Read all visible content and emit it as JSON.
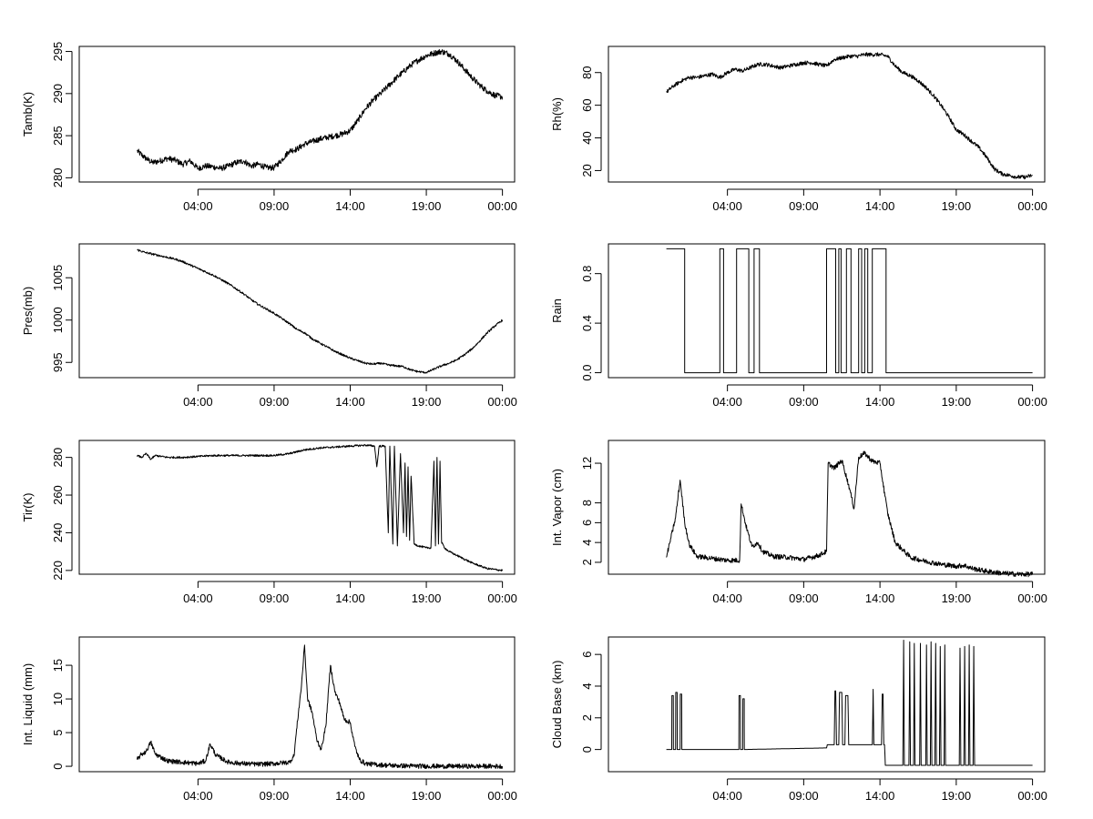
{
  "chart_data": [
    {
      "type": "line",
      "panel": "top-left",
      "ylabel": "Tamb(K)",
      "ylim": [
        279.5,
        295.6
      ],
      "yticks": [
        280,
        285,
        290,
        295
      ],
      "xlim": [
        -3.8,
        24.8
      ],
      "xticks": [
        4,
        9,
        14,
        19,
        24
      ],
      "xtick_labels": [
        "04:00",
        "09:00",
        "14:00",
        "19:00",
        "00:00"
      ],
      "x": [
        0,
        0.5,
        1,
        1.5,
        2,
        2.5,
        3,
        3.5,
        4,
        4.5,
        5,
        5.5,
        6,
        6.5,
        7,
        7.5,
        8,
        8.5,
        9,
        9.5,
        10,
        10.5,
        11,
        11.5,
        12,
        12.5,
        13,
        13.5,
        14,
        14.5,
        15,
        15.5,
        16,
        16.5,
        17,
        17.5,
        18,
        18.5,
        19,
        19.5,
        20,
        20.5,
        21,
        21.5,
        22,
        22.5,
        23,
        23.5,
        24
      ],
      "y": [
        283.2,
        282.4,
        281.8,
        282.0,
        282.3,
        282.1,
        281.6,
        282.0,
        281.1,
        281.4,
        281.3,
        281.1,
        281.4,
        281.8,
        282.0,
        281.4,
        281.6,
        281.2,
        281.2,
        282.1,
        283.2,
        283.4,
        284.0,
        284.3,
        284.6,
        284.8,
        285.0,
        285.2,
        285.6,
        286.8,
        288.2,
        289.2,
        290.0,
        290.9,
        291.8,
        292.6,
        293.4,
        294.0,
        294.5,
        294.8,
        295.0,
        294.7,
        293.9,
        292.9,
        291.9,
        291.0,
        290.3,
        289.8,
        289.6
      ],
      "noise": 0.35
    },
    {
      "type": "line",
      "panel": "top-right",
      "ylabel": "Rh(%)",
      "ylim": [
        13,
        96
      ],
      "yticks": [
        20,
        40,
        60,
        80
      ],
      "xlim": [
        -3.8,
        24.8
      ],
      "xticks": [
        4,
        9,
        14,
        19,
        24
      ],
      "xtick_labels": [
        "04:00",
        "09:00",
        "14:00",
        "19:00",
        "00:00"
      ],
      "x": [
        0,
        0.5,
        1,
        1.5,
        2,
        2.5,
        3,
        3.5,
        4,
        4.5,
        5,
        5.5,
        6,
        6.5,
        7,
        7.5,
        8,
        8.5,
        9,
        9.5,
        10,
        10.5,
        11,
        11.5,
        12,
        12.5,
        13,
        13.5,
        14,
        14.5,
        15,
        15.5,
        16,
        16.5,
        17,
        17.5,
        18,
        18.5,
        19,
        19.5,
        20,
        20.5,
        21,
        21.5,
        22,
        22.5,
        23,
        23.5,
        24
      ],
      "y": [
        68,
        72,
        75,
        77,
        77,
        78,
        79,
        77,
        80,
        82,
        81,
        83,
        85,
        85,
        84,
        83,
        84,
        85,
        86,
        86,
        85,
        84,
        88,
        89,
        90,
        90,
        91,
        91,
        91,
        90,
        84,
        80,
        78,
        75,
        71,
        66,
        60,
        53,
        45,
        42,
        38,
        34,
        28,
        21,
        18,
        17,
        16,
        16,
        17
      ],
      "noise": 1.2
    },
    {
      "type": "line",
      "panel": "row2-left",
      "ylabel": "Pres(mb)",
      "ylim": [
        993.2,
        1009.0
      ],
      "yticks": [
        995,
        1000,
        1005
      ],
      "xlim": [
        -3.8,
        24.8
      ],
      "xticks": [
        4,
        9,
        14,
        19,
        24
      ],
      "xtick_labels": [
        "04:00",
        "09:00",
        "14:00",
        "19:00",
        "00:00"
      ],
      "x": [
        0,
        0.5,
        1,
        1.5,
        2,
        2.5,
        3,
        3.5,
        4,
        4.5,
        5,
        5.5,
        6,
        6.5,
        7,
        7.5,
        8,
        8.5,
        9,
        9.5,
        10,
        10.5,
        11,
        11.5,
        12,
        12.5,
        13,
        13.5,
        14,
        14.5,
        15,
        15.5,
        16,
        16.5,
        17,
        17.5,
        18,
        18.5,
        19,
        19.5,
        20,
        20.5,
        21,
        21.5,
        22,
        22.5,
        23,
        23.5,
        24
      ],
      "y": [
        1008.3,
        1008.0,
        1007.8,
        1007.6,
        1007.4,
        1007.2,
        1006.9,
        1006.5,
        1006.1,
        1005.7,
        1005.3,
        1004.8,
        1004.3,
        1003.7,
        1003.1,
        1002.4,
        1001.8,
        1001.3,
        1000.8,
        1000.2,
        999.6,
        998.9,
        998.5,
        997.8,
        997.3,
        996.8,
        996.3,
        995.9,
        995.5,
        995.2,
        994.9,
        994.8,
        994.9,
        994.7,
        994.6,
        994.5,
        994.1,
        993.9,
        993.8,
        994.2,
        994.6,
        994.9,
        995.3,
        995.9,
        996.6,
        997.5,
        998.5,
        999.3,
        1000.0
      ],
      "noise": 0.12
    },
    {
      "type": "line",
      "panel": "row2-right",
      "ylabel": "Rain",
      "ylim": [
        -0.04,
        1.04
      ],
      "yticks": [
        0.0,
        0.4,
        0.8
      ],
      "ytick_labels": [
        "0.0",
        "0.4",
        "0.8"
      ],
      "xlim": [
        -3.8,
        24.8
      ],
      "xticks": [
        4,
        9,
        14,
        19,
        24
      ],
      "xtick_labels": [
        "04:00",
        "09:00",
        "14:00",
        "19:00",
        "00:00"
      ],
      "step": true,
      "x": [
        0,
        1.2,
        1.2,
        3.5,
        3.5,
        3.75,
        3.75,
        4.6,
        4.6,
        5.4,
        5.4,
        5.75,
        5.75,
        6.1,
        6.1,
        10.5,
        10.5,
        11.1,
        11.1,
        11.3,
        11.3,
        11.45,
        11.45,
        11.8,
        11.8,
        12.1,
        12.1,
        12.6,
        12.6,
        12.8,
        12.8,
        13.0,
        13.0,
        13.2,
        13.2,
        13.5,
        13.5,
        14.4,
        14.4,
        24
      ],
      "y": [
        1,
        1,
        0,
        0,
        1,
        1,
        0,
        0,
        1,
        1,
        0,
        0,
        1,
        1,
        0,
        0,
        1,
        1,
        0,
        0,
        1,
        1,
        0,
        0,
        1,
        1,
        0,
        0,
        1,
        1,
        0,
        0,
        1,
        1,
        0,
        0,
        1,
        1,
        0,
        0
      ]
    },
    {
      "type": "line",
      "panel": "row3-left",
      "ylabel": "Tir(K)",
      "ylim": [
        218,
        289
      ],
      "yticks": [
        220,
        240,
        260,
        280
      ],
      "xlim": [
        -3.8,
        24.8
      ],
      "xticks": [
        4,
        9,
        14,
        19,
        24
      ],
      "xtick_labels": [
        "04:00",
        "09:00",
        "14:00",
        "19:00",
        "00:00"
      ],
      "x": [
        0,
        0.3,
        0.6,
        0.9,
        1.2,
        2,
        3,
        4,
        5,
        6,
        7,
        8,
        9,
        10,
        11,
        12,
        13,
        14,
        15,
        15.6,
        15.75,
        15.9,
        16.3,
        16.5,
        16.6,
        16.8,
        16.9,
        17.1,
        17.3,
        17.5,
        17.6,
        17.7,
        17.8,
        17.9,
        18.0,
        18.2,
        18.5,
        19.0,
        19.3,
        19.5,
        19.6,
        19.7,
        19.8,
        19.9,
        20.0,
        20.2,
        20.5,
        21,
        22,
        23,
        24
      ],
      "y": [
        281,
        280,
        282,
        279,
        281,
        280,
        280,
        280.5,
        281,
        281,
        281,
        281,
        281,
        282,
        284,
        285,
        285.5,
        286,
        286.5,
        286,
        275,
        286,
        286,
        240,
        286,
        234,
        286,
        233,
        282,
        240,
        277,
        238,
        275,
        236,
        270,
        234,
        233,
        232,
        232,
        278,
        233,
        280,
        234,
        278,
        235,
        232,
        230,
        228,
        224,
        221,
        220
      ],
      "noise": 0.5
    },
    {
      "type": "line",
      "panel": "row3-right",
      "ylabel": "Int. Vapor (cm)",
      "ylim": [
        0.8,
        14.3
      ],
      "yticks": [
        2,
        4,
        6,
        8,
        12
      ],
      "xlim": [
        -3.8,
        24.8
      ],
      "xticks": [
        4,
        9,
        14,
        19,
        24
      ],
      "xtick_labels": [
        "04:00",
        "09:00",
        "14:00",
        "19:00",
        "00:00"
      ],
      "x": [
        0,
        0.3,
        0.6,
        0.9,
        1.2,
        1.5,
        2,
        3,
        4,
        4.8,
        4.9,
        5.2,
        5.6,
        6.0,
        6.3,
        7,
        8,
        9,
        10,
        10.5,
        10.6,
        11,
        11.5,
        12,
        12.3,
        12.6,
        13,
        13.5,
        14,
        14.5,
        15,
        16,
        17,
        18,
        19,
        19.5,
        20,
        21,
        22,
        23,
        24
      ],
      "y": [
        2.5,
        4.5,
        6.5,
        10.3,
        6.0,
        3.8,
        2.6,
        2.4,
        2.2,
        2.2,
        7.9,
        5.8,
        3.6,
        4.0,
        3.1,
        2.6,
        2.5,
        2.3,
        2.7,
        3.1,
        12.0,
        11.5,
        12.3,
        9.5,
        7.4,
        12.6,
        13.0,
        12.2,
        12.0,
        7.0,
        4.0,
        2.5,
        2.1,
        1.8,
        1.6,
        1.7,
        1.4,
        1.1,
        0.9,
        0.8,
        0.8
      ],
      "noise": 0.25
    },
    {
      "type": "line",
      "panel": "bottom-left",
      "ylabel": "Int. Liquid (mm)",
      "ylim": [
        -0.8,
        19.2
      ],
      "yticks": [
        0,
        5,
        10,
        15
      ],
      "xlim": [
        -3.8,
        24.8
      ],
      "xticks": [
        4,
        9,
        14,
        19,
        24
      ],
      "xtick_labels": [
        "04:00",
        "09:00",
        "14:00",
        "19:00",
        "00:00"
      ],
      "x": [
        0,
        0.3,
        0.6,
        0.9,
        1.2,
        2,
        3,
        4,
        4.5,
        4.8,
        5.2,
        6,
        7,
        8,
        9,
        10,
        10.3,
        10.6,
        10.8,
        11,
        11.2,
        11.5,
        11.8,
        12.1,
        12.4,
        12.7,
        13.0,
        13.3,
        13.6,
        14.0,
        14.3,
        14.6,
        15,
        16,
        17,
        18,
        19,
        20,
        21,
        22,
        23,
        24
      ],
      "y": [
        1.0,
        1.8,
        2.2,
        3.6,
        1.8,
        0.8,
        0.6,
        0.4,
        0.8,
        3.3,
        1.6,
        0.6,
        0.4,
        0.3,
        0.4,
        0.6,
        1.5,
        8.0,
        12.0,
        18.0,
        10.0,
        8.0,
        4.0,
        2.5,
        6.0,
        15.0,
        11.0,
        9.5,
        7.0,
        6.5,
        3.0,
        1.0,
        0.4,
        0.2,
        0.1,
        0.05,
        0.02,
        0,
        0,
        0,
        0,
        0
      ],
      "noise": 0.35
    },
    {
      "type": "line",
      "panel": "bottom-right",
      "ylabel": "Cloud Base (km)",
      "ylim": [
        -1.4,
        7.1
      ],
      "yticks": [
        0,
        2,
        4,
        6
      ],
      "xlim": [
        -3.8,
        24.8
      ],
      "xticks": [
        4,
        9,
        14,
        19,
        24
      ],
      "xtick_labels": [
        "04:00",
        "09:00",
        "14:00",
        "19:00",
        "00:00"
      ],
      "x": [
        0,
        0.35,
        0.36,
        0.45,
        0.46,
        0.6,
        0.61,
        0.7,
        0.71,
        0.9,
        0.91,
        1.0,
        1.01,
        1.2,
        4.75,
        4.76,
        4.85,
        4.86,
        5.0,
        5.01,
        5.1,
        5.11,
        10.5,
        10.55,
        11.0,
        11.05,
        11.1,
        11.15,
        11.3,
        11.35,
        11.5,
        11.55,
        11.7,
        11.75,
        11.9,
        11.95,
        12.2,
        13.5,
        13.55,
        13.6,
        14.1,
        14.15,
        14.2,
        14.25,
        14.3,
        14.35,
        15.5,
        15.55,
        15.6,
        15.9,
        15.95,
        16.0,
        16.2,
        16.25,
        16.3,
        16.6,
        16.65,
        16.7,
        17.0,
        17.05,
        17.1,
        17.3,
        17.35,
        17.4,
        17.6,
        17.65,
        17.7,
        17.9,
        17.95,
        18.0,
        18.2,
        18.25,
        18.3,
        19.2,
        19.25,
        19.3,
        19.5,
        19.55,
        19.6,
        19.8,
        19.85,
        19.9,
        20.1,
        20.15,
        20.2,
        20.5,
        24
      ],
      "y": [
        0,
        0,
        3.4,
        3.4,
        0,
        0,
        3.6,
        3.6,
        0,
        0,
        3.5,
        3.5,
        0,
        0,
        0,
        3.4,
        3.4,
        0,
        0,
        3.2,
        3.2,
        0,
        0.1,
        0.3,
        0.3,
        3.7,
        3.7,
        0.3,
        0.3,
        3.6,
        3.6,
        0.3,
        0.3,
        3.4,
        3.4,
        0.3,
        0.3,
        0.3,
        3.8,
        0.3,
        0.3,
        3.5,
        3.5,
        0.3,
        0.3,
        -1,
        -1,
        6.9,
        -1,
        -1,
        6.8,
        -1,
        -1,
        6.7,
        -1,
        -1,
        6.7,
        -1,
        -1,
        6.6,
        -1,
        -1,
        6.8,
        -1,
        -1,
        6.7,
        -1,
        -1,
        6.5,
        -1,
        -1,
        6.6,
        -1,
        -1,
        6.4,
        -1,
        -1,
        6.5,
        -1,
        -1,
        6.6,
        -1,
        -1,
        6.5,
        -1,
        -1,
        -1
      ]
    }
  ]
}
